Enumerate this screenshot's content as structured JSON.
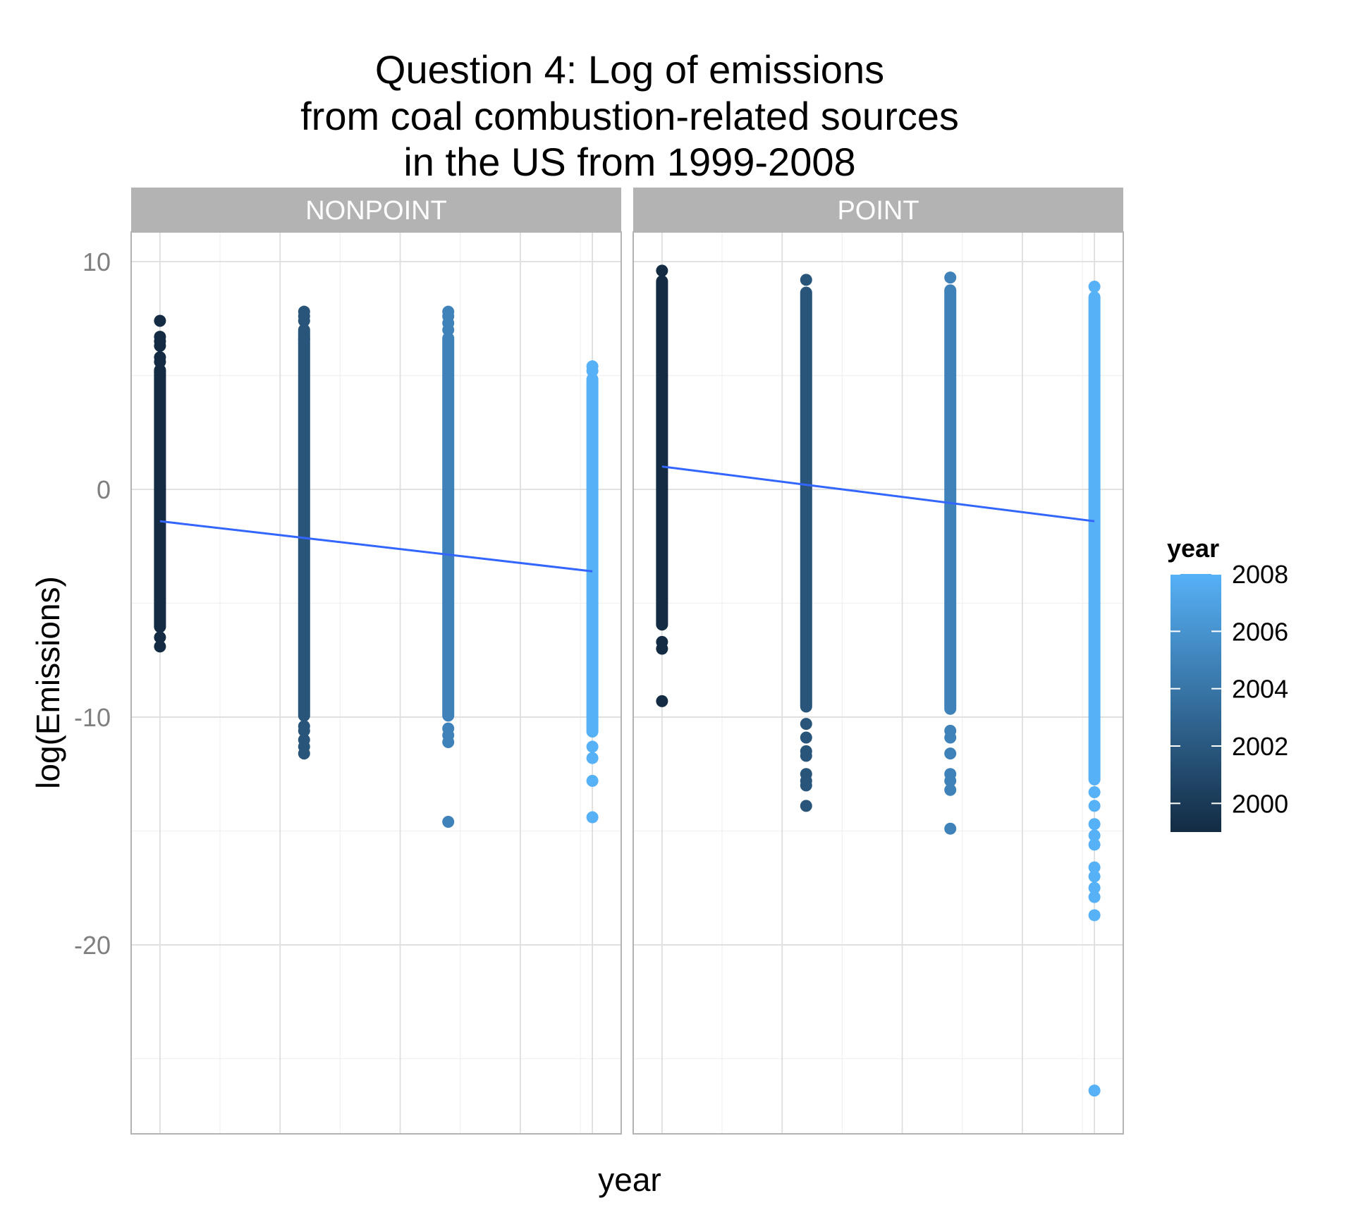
{
  "chart_data": {
    "type": "scatter",
    "title_lines": [
      "Question 4: Log of emissions",
      "from coal combustion-related sources",
      "in the US  from 1999-2008"
    ],
    "xlabel": "year",
    "ylabel": "log(Emissions)",
    "ylim": [
      -28.3,
      11.3
    ],
    "xlim": [
      1998.4,
      2008.6
    ],
    "y_ticks": [
      10,
      0,
      -10,
      -20
    ],
    "y_tick_labels": [
      "10",
      "0",
      "-10",
      "-20"
    ],
    "grid": true,
    "legend": {
      "title": "year",
      "position": "right",
      "type": "colorbar",
      "range": [
        1999,
        2008
      ],
      "color_low": "#132B43",
      "color_high": "#56B1F7",
      "labels": [
        "2008",
        "2006",
        "2004",
        "2002",
        "2000"
      ],
      "breaks": [
        2008,
        2006,
        2004,
        2002,
        2000
      ]
    },
    "facets": [
      {
        "label": "NONPOINT",
        "trend": {
          "x": [
            1999,
            2008
          ],
          "y": [
            -1.4,
            -3.6
          ]
        },
        "series": [
          {
            "year": 1999,
            "color": "#132B43",
            "bar": [
              -6.3,
              5.5
            ],
            "points": [
              7.4,
              6.7,
              6.5,
              6.3,
              5.8,
              5.6,
              -6.5,
              -6.9
            ]
          },
          {
            "year": 2002,
            "color": "#285579",
            "bar": [
              -10.2,
              7.2
            ],
            "points": [
              7.8,
              7.6,
              7.4,
              7.0,
              6.6,
              -10.4,
              -10.6,
              -11.0,
              -11.3,
              -11.6
            ]
          },
          {
            "year": 2005,
            "color": "#3F82BA",
            "bar": [
              -10.2,
              6.9
            ],
            "points": [
              7.8,
              7.6,
              7.3,
              7.0,
              -10.5,
              -10.8,
              -11.1,
              -14.6
            ]
          },
          {
            "year": 2008,
            "color": "#56B1F7",
            "bar": [
              -10.9,
              5.1
            ],
            "points": [
              5.4,
              5.2,
              -11.3,
              -11.8,
              -12.8,
              -14.4
            ]
          }
        ]
      },
      {
        "label": "POINT",
        "trend": {
          "x": [
            1999,
            2008
          ],
          "y": [
            1.0,
            -1.4
          ]
        },
        "series": [
          {
            "year": 1999,
            "color": "#132B43",
            "bar": [
              -6.2,
              9.4
            ],
            "points": [
              9.6,
              -6.7,
              -7.0,
              -9.3
            ]
          },
          {
            "year": 2002,
            "color": "#285579",
            "bar": [
              -9.8,
              8.9
            ],
            "points": [
              9.2,
              -10.3,
              -10.9,
              -11.5,
              -11.7,
              -12.5,
              -12.8,
              -13.0,
              -13.9
            ]
          },
          {
            "year": 2005,
            "color": "#3F82BA",
            "bar": [
              -9.9,
              9.0
            ],
            "points": [
              9.3,
              -10.6,
              -10.9,
              -11.6,
              -12.5,
              -12.8,
              -13.2,
              -14.9
            ]
          },
          {
            "year": 2008,
            "color": "#56B1F7",
            "bar": [
              -13.0,
              8.7
            ],
            "points": [
              8.9,
              -13.3,
              -13.9,
              -14.7,
              -15.2,
              -15.6,
              -16.6,
              -17.0,
              -17.5,
              -17.9,
              -18.7,
              -26.4
            ]
          }
        ]
      }
    ]
  }
}
